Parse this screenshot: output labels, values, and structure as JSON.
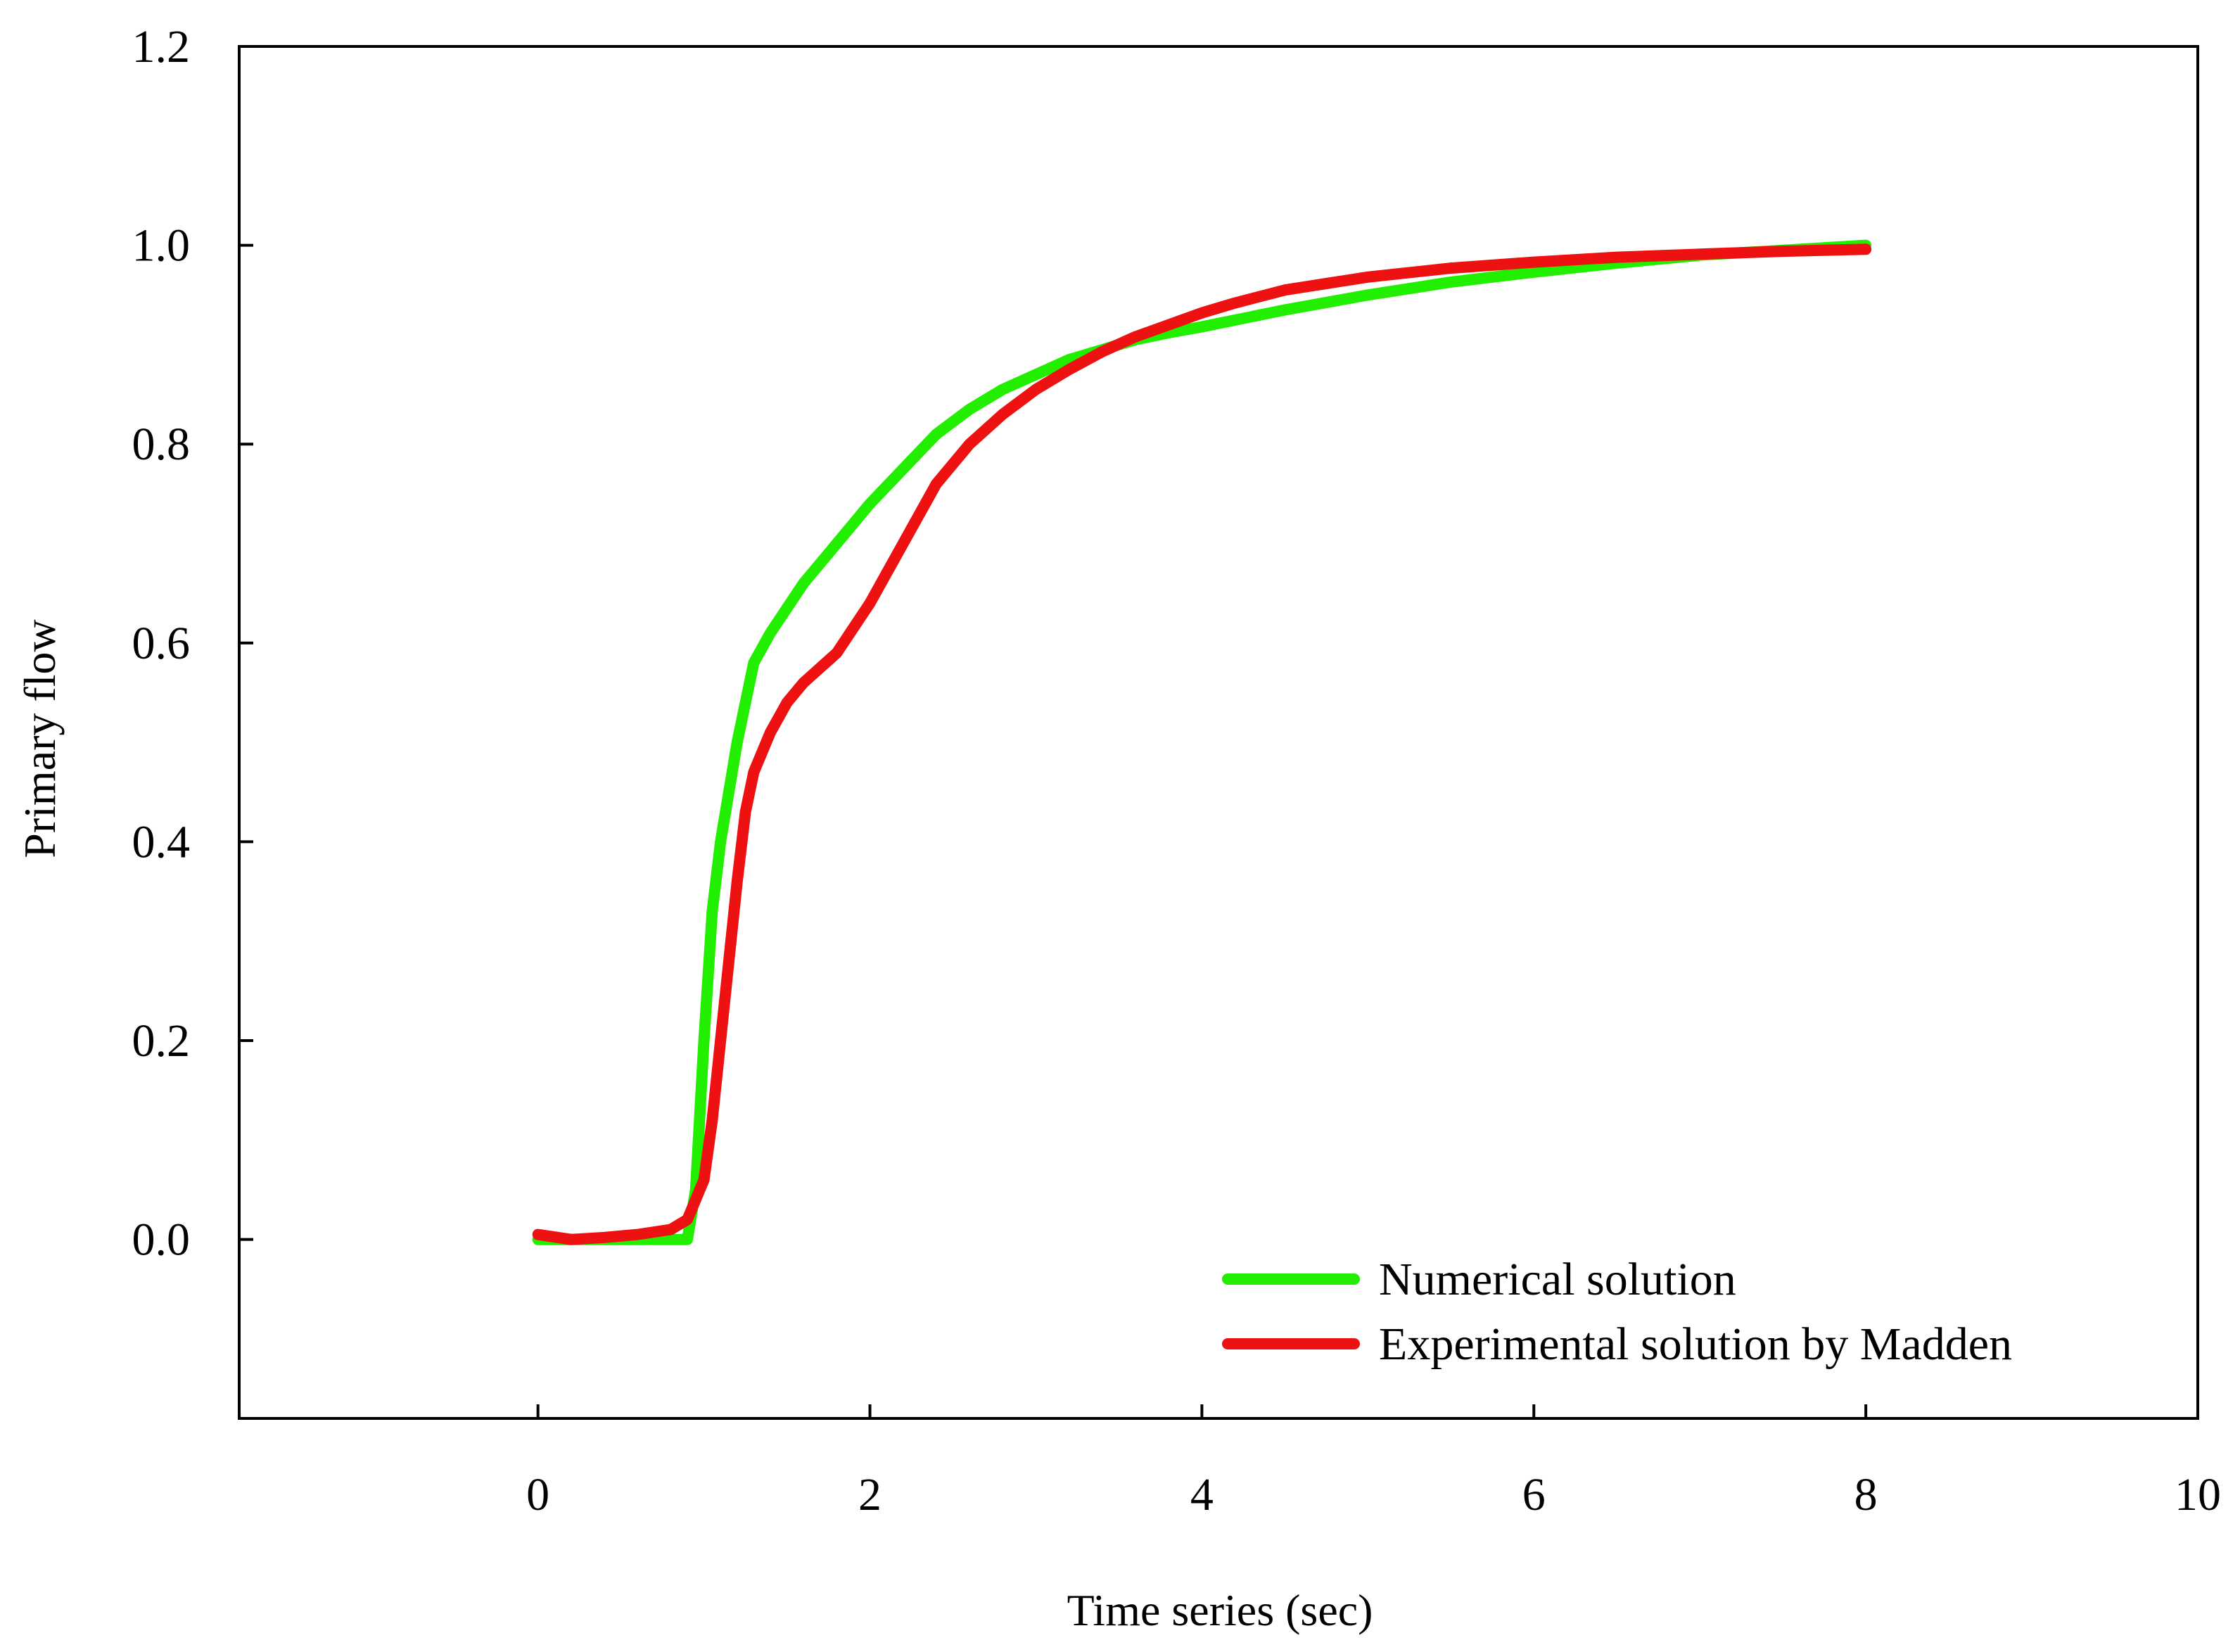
{
  "chart_data": {
    "type": "line",
    "title": "",
    "xlabel": "Time series (sec)",
    "ylabel": "Primary flow",
    "xlim": [
      -1.8,
      10
    ],
    "ylim": [
      -0.18,
      1.2
    ],
    "x_ticks": [
      0,
      2,
      4,
      6,
      8,
      10
    ],
    "x_tick_labels": [
      "0",
      "2",
      "4",
      "6",
      "8",
      "10"
    ],
    "y_ticks": [
      0.0,
      0.2,
      0.4,
      0.6,
      0.8,
      1.0,
      1.2
    ],
    "y_tick_labels": [
      "0.0",
      "0.2",
      "0.4",
      "0.6",
      "0.8",
      "1.0",
      "1.2"
    ],
    "grid": false,
    "legend_position": "bottom-right",
    "series": [
      {
        "name": "Numerical solution",
        "color": "#22ee00",
        "x": [
          0,
          0.5,
          0.9,
          0.95,
          1.0,
          1.05,
          1.1,
          1.2,
          1.3,
          1.4,
          1.6,
          1.8,
          2.0,
          2.2,
          2.4,
          2.6,
          2.8,
          3.0,
          3.2,
          3.4,
          3.6,
          3.8,
          4.0,
          4.5,
          5.0,
          5.5,
          6.0,
          6.5,
          7.0,
          7.5,
          8.0
        ],
        "y": [
          0.0,
          0.0,
          0.0,
          0.05,
          0.2,
          0.33,
          0.4,
          0.5,
          0.58,
          0.61,
          0.66,
          0.7,
          0.74,
          0.775,
          0.81,
          0.835,
          0.855,
          0.87,
          0.885,
          0.895,
          0.905,
          0.912,
          0.918,
          0.935,
          0.95,
          0.963,
          0.973,
          0.982,
          0.99,
          0.995,
          1.0
        ]
      },
      {
        "name": "Experimental solution by Madden",
        "color": "#ee1111",
        "x": [
          0,
          0.2,
          0.4,
          0.6,
          0.8,
          0.9,
          1.0,
          1.05,
          1.1,
          1.15,
          1.2,
          1.25,
          1.3,
          1.4,
          1.5,
          1.6,
          1.8,
          2.0,
          2.2,
          2.4,
          2.6,
          2.8,
          3.0,
          3.2,
          3.4,
          3.6,
          3.8,
          4.0,
          4.2,
          4.5,
          5.0,
          5.5,
          6.0,
          6.5,
          7.0,
          7.5,
          8.0
        ],
        "y": [
          0.005,
          0.0,
          0.002,
          0.005,
          0.01,
          0.02,
          0.06,
          0.12,
          0.2,
          0.28,
          0.36,
          0.43,
          0.47,
          0.51,
          0.54,
          0.56,
          0.59,
          0.64,
          0.7,
          0.76,
          0.8,
          0.83,
          0.855,
          0.875,
          0.893,
          0.908,
          0.92,
          0.932,
          0.942,
          0.955,
          0.968,
          0.977,
          0.983,
          0.988,
          0.991,
          0.994,
          0.996
        ]
      }
    ]
  }
}
